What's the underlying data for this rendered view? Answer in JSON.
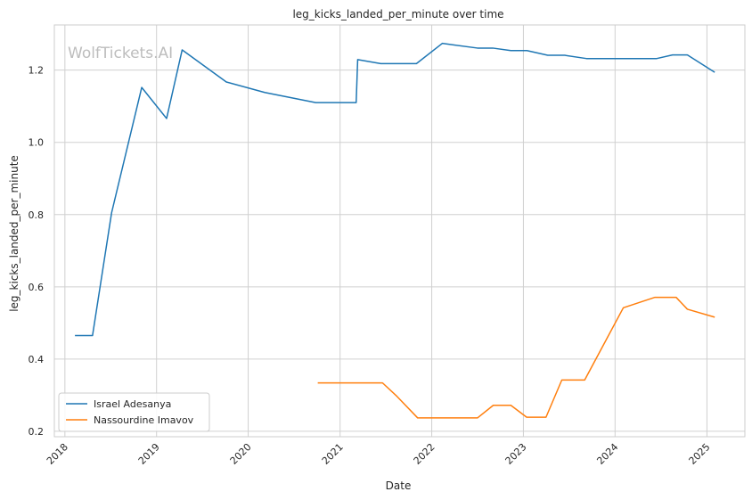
{
  "chart_data": {
    "type": "line",
    "title": "leg_kicks_landed_per_minute over time",
    "xlabel": "Date",
    "ylabel": "leg_kicks_landed_per_minute",
    "watermark": "WolfTickets.AI",
    "xlim": [
      "2017-11-20",
      "2025-06-01"
    ],
    "ylim": [
      0.185,
      1.325
    ],
    "x_ticks": [
      "2018-01-01",
      "2019-01-01",
      "2020-01-01",
      "2021-01-01",
      "2022-01-01",
      "2023-01-01",
      "2024-01-01",
      "2025-01-01"
    ],
    "x_tick_labels": [
      "2018",
      "2019",
      "2020",
      "2021",
      "2022",
      "2023",
      "2024",
      "2025"
    ],
    "y_ticks": [
      0.2,
      0.4,
      0.6,
      0.8,
      1.0,
      1.2
    ],
    "y_tick_labels": [
      "0.2",
      "0.4",
      "0.6",
      "0.8",
      "1.0",
      "1.2"
    ],
    "grid": true,
    "legend_position": "lower-left",
    "series": [
      {
        "name": "Israel Adesanya",
        "color": "#1f77b4",
        "points": [
          {
            "x": "2018-02-10",
            "y": 0.465
          },
          {
            "x": "2018-04-21",
            "y": 0.465
          },
          {
            "x": "2018-07-06",
            "y": 0.805
          },
          {
            "x": "2018-11-03",
            "y": 1.152
          },
          {
            "x": "2019-02-10",
            "y": 1.066
          },
          {
            "x": "2019-04-13",
            "y": 1.256
          },
          {
            "x": "2019-10-06",
            "y": 1.167
          },
          {
            "x": "2020-03-07",
            "y": 1.138
          },
          {
            "x": "2020-09-26",
            "y": 1.11
          },
          {
            "x": "2021-03-06",
            "y": 1.11
          },
          {
            "x": "2021-03-12",
            "y": 1.229
          },
          {
            "x": "2021-06-12",
            "y": 1.218
          },
          {
            "x": "2021-11-01",
            "y": 1.218
          },
          {
            "x": "2022-02-12",
            "y": 1.274
          },
          {
            "x": "2022-07-02",
            "y": 1.261
          },
          {
            "x": "2022-09-01",
            "y": 1.261
          },
          {
            "x": "2022-11-12",
            "y": 1.254
          },
          {
            "x": "2023-01-15",
            "y": 1.254
          },
          {
            "x": "2023-04-08",
            "y": 1.241
          },
          {
            "x": "2023-06-15",
            "y": 1.241
          },
          {
            "x": "2023-09-09",
            "y": 1.232
          },
          {
            "x": "2024-06-15",
            "y": 1.232
          },
          {
            "x": "2024-08-17",
            "y": 1.242
          },
          {
            "x": "2024-10-15",
            "y": 1.242
          },
          {
            "x": "2025-02-01",
            "y": 1.194
          }
        ]
      },
      {
        "name": "Nassourdine Imavov",
        "color": "#ff7f0e",
        "points": [
          {
            "x": "2020-10-04",
            "y": 0.334
          },
          {
            "x": "2021-06-19",
            "y": 0.334
          },
          {
            "x": "2021-08-15",
            "y": 0.297
          },
          {
            "x": "2021-11-06",
            "y": 0.237
          },
          {
            "x": "2022-07-02",
            "y": 0.237
          },
          {
            "x": "2022-09-03",
            "y": 0.272
          },
          {
            "x": "2022-11-12",
            "y": 0.272
          },
          {
            "x": "2023-01-14",
            "y": 0.239
          },
          {
            "x": "2023-04-01",
            "y": 0.239
          },
          {
            "x": "2023-06-03",
            "y": 0.342
          },
          {
            "x": "2023-09-02",
            "y": 0.342
          },
          {
            "x": "2024-02-03",
            "y": 0.542
          },
          {
            "x": "2024-06-08",
            "y": 0.571
          },
          {
            "x": "2024-08-31",
            "y": 0.571
          },
          {
            "x": "2024-10-15",
            "y": 0.538
          },
          {
            "x": "2025-02-01",
            "y": 0.516
          }
        ]
      }
    ]
  }
}
